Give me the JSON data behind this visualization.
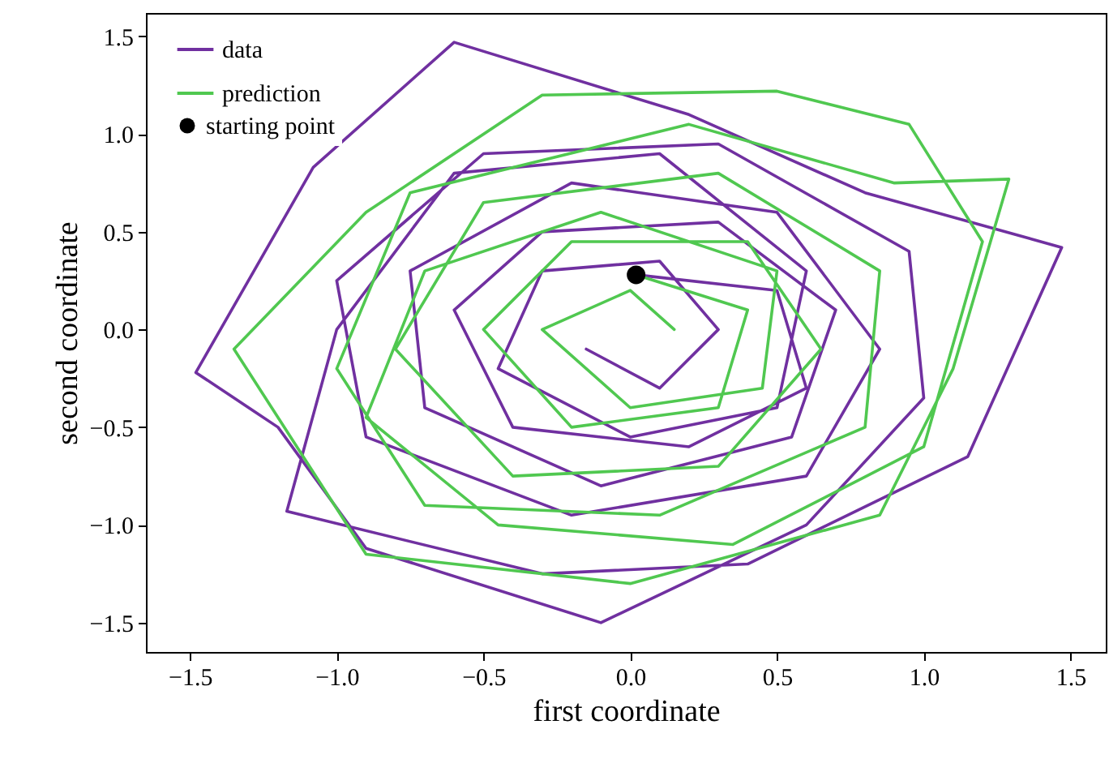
{
  "chart_data": {
    "type": "line",
    "xlabel": "first coordinate",
    "ylabel": "second coordinate",
    "xlim": [
      -1.65,
      1.62
    ],
    "ylim": [
      -1.65,
      1.62
    ],
    "xticks": [
      {
        "value": -1.5,
        "label": "−1.5"
      },
      {
        "value": -1,
        "label": "−1.0"
      },
      {
        "value": -0.5,
        "label": "−0.5"
      },
      {
        "value": 0,
        "label": "0.0"
      },
      {
        "value": 0.5,
        "label": "0.5"
      },
      {
        "value": 1,
        "label": "1.0"
      },
      {
        "value": 1.5,
        "label": "1.5"
      }
    ],
    "yticks": [
      {
        "value": -1.5,
        "label": "−1.5"
      },
      {
        "value": -1,
        "label": "−1.0"
      },
      {
        "value": -0.5,
        "label": "−0.5"
      },
      {
        "value": 0,
        "label": "0.0"
      },
      {
        "value": 0.5,
        "label": "0.5"
      },
      {
        "value": 1,
        "label": "1.0"
      },
      {
        "value": 1.5,
        "label": "1.5"
      }
    ],
    "grid": false,
    "legend": "top left",
    "series": [
      {
        "name": "data",
        "color": "#7030a0",
        "line_style": "solid",
        "x": [
          0.02,
          0.5,
          0.6,
          0.2,
          -0.4,
          -0.6,
          -0.3,
          0.3,
          0.7,
          0.55,
          -0.1,
          -0.7,
          -0.75,
          -0.2,
          0.5,
          0.85,
          0.6,
          -0.2,
          -0.9,
          -1.0,
          -0.5,
          0.3,
          0.95,
          1.0,
          0.6,
          -0.1,
          -0.9,
          -1.2,
          -1.48,
          -1.08,
          -0.6,
          0.2,
          0.8,
          1.47,
          1.15,
          0.4,
          -0.3,
          -1.17,
          -1.0,
          -0.6,
          0.1,
          0.6,
          0.5,
          0.0,
          -0.45,
          -0.3,
          0.1,
          0.3,
          0.1,
          -0.15
        ],
        "values": [
          0.28,
          0.2,
          -0.3,
          -0.6,
          -0.5,
          0.1,
          0.5,
          0.55,
          0.1,
          -0.55,
          -0.8,
          -0.4,
          0.3,
          0.75,
          0.6,
          -0.1,
          -0.75,
          -0.95,
          -0.55,
          0.25,
          0.9,
          0.95,
          0.4,
          -0.35,
          -1.0,
          -1.5,
          -1.12,
          -0.5,
          -0.22,
          0.83,
          1.47,
          1.1,
          0.7,
          0.42,
          -0.65,
          -1.2,
          -1.25,
          -0.93,
          0.0,
          0.8,
          0.9,
          0.3,
          -0.4,
          -0.55,
          -0.2,
          0.3,
          0.35,
          0.0,
          -0.3,
          -0.1
        ]
      },
      {
        "name": "prediction",
        "color": "#50c850",
        "line_style": "solid",
        "x": [
          0.02,
          0.4,
          0.3,
          -0.2,
          -0.5,
          -0.2,
          0.4,
          0.65,
          0.3,
          -0.4,
          -0.8,
          -0.5,
          0.3,
          0.85,
          0.8,
          0.1,
          -0.7,
          -1.0,
          -0.75,
          0.2,
          0.9,
          1.29,
          1.1,
          0.85,
          0.0,
          -0.9,
          -1.35,
          -0.9,
          -0.3,
          0.5,
          0.95,
          1.2,
          1.0,
          0.35,
          -0.45,
          -0.9,
          -0.7,
          -0.1,
          0.5,
          0.45,
          0.0,
          -0.3,
          0.0,
          0.15
        ],
        "values": [
          0.28,
          0.1,
          -0.4,
          -0.5,
          0.0,
          0.45,
          0.45,
          -0.1,
          -0.7,
          -0.75,
          -0.1,
          0.65,
          0.8,
          0.3,
          -0.5,
          -0.95,
          -0.9,
          -0.2,
          0.7,
          1.05,
          0.75,
          0.77,
          -0.2,
          -0.95,
          -1.3,
          -1.15,
          -0.1,
          0.6,
          1.2,
          1.22,
          1.05,
          0.45,
          -0.6,
          -1.1,
          -1.0,
          -0.45,
          0.3,
          0.6,
          0.3,
          -0.3,
          -0.4,
          0.0,
          0.2,
          0.0
        ]
      },
      {
        "name": "starting point",
        "type": "scatter",
        "color": "#000000",
        "marker": "circle",
        "x": [
          0.02
        ],
        "values": [
          0.28
        ]
      }
    ]
  }
}
